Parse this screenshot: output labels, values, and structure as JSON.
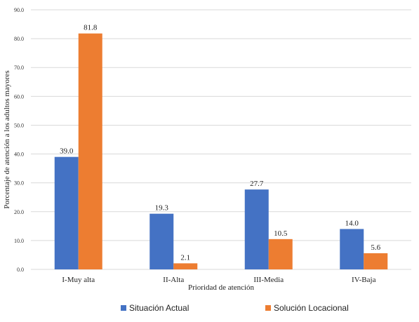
{
  "chart_data": {
    "type": "bar",
    "title": "",
    "xlabel": "Prioridad de atención",
    "ylabel": "Porcentaje de atención a los adultos mayores",
    "categories": [
      "I-Muy alta",
      "II-Alta",
      "III-Media",
      "IV-Baja"
    ],
    "series": [
      {
        "name": "Situación Actual",
        "color": "#4472C4",
        "values": [
          39.0,
          19.3,
          27.7,
          14.0
        ],
        "labels": [
          "39.0",
          "19.3",
          "27.7",
          "14.0"
        ]
      },
      {
        "name": "Solución Locacional",
        "color": "#ED7D31",
        "values": [
          81.8,
          2.1,
          10.5,
          5.6
        ],
        "labels": [
          "81.8",
          "2.1",
          "10.5",
          "5.6"
        ]
      }
    ],
    "ylim": [
      0,
      90
    ],
    "yticks": [
      "0.0",
      "10.0",
      "20.0",
      "30.0",
      "40.0",
      "50.0",
      "60.0",
      "70.0",
      "80.0",
      "90.0"
    ],
    "grid": true,
    "gridColor": "#D9D9D9",
    "legend": "bottom"
  }
}
